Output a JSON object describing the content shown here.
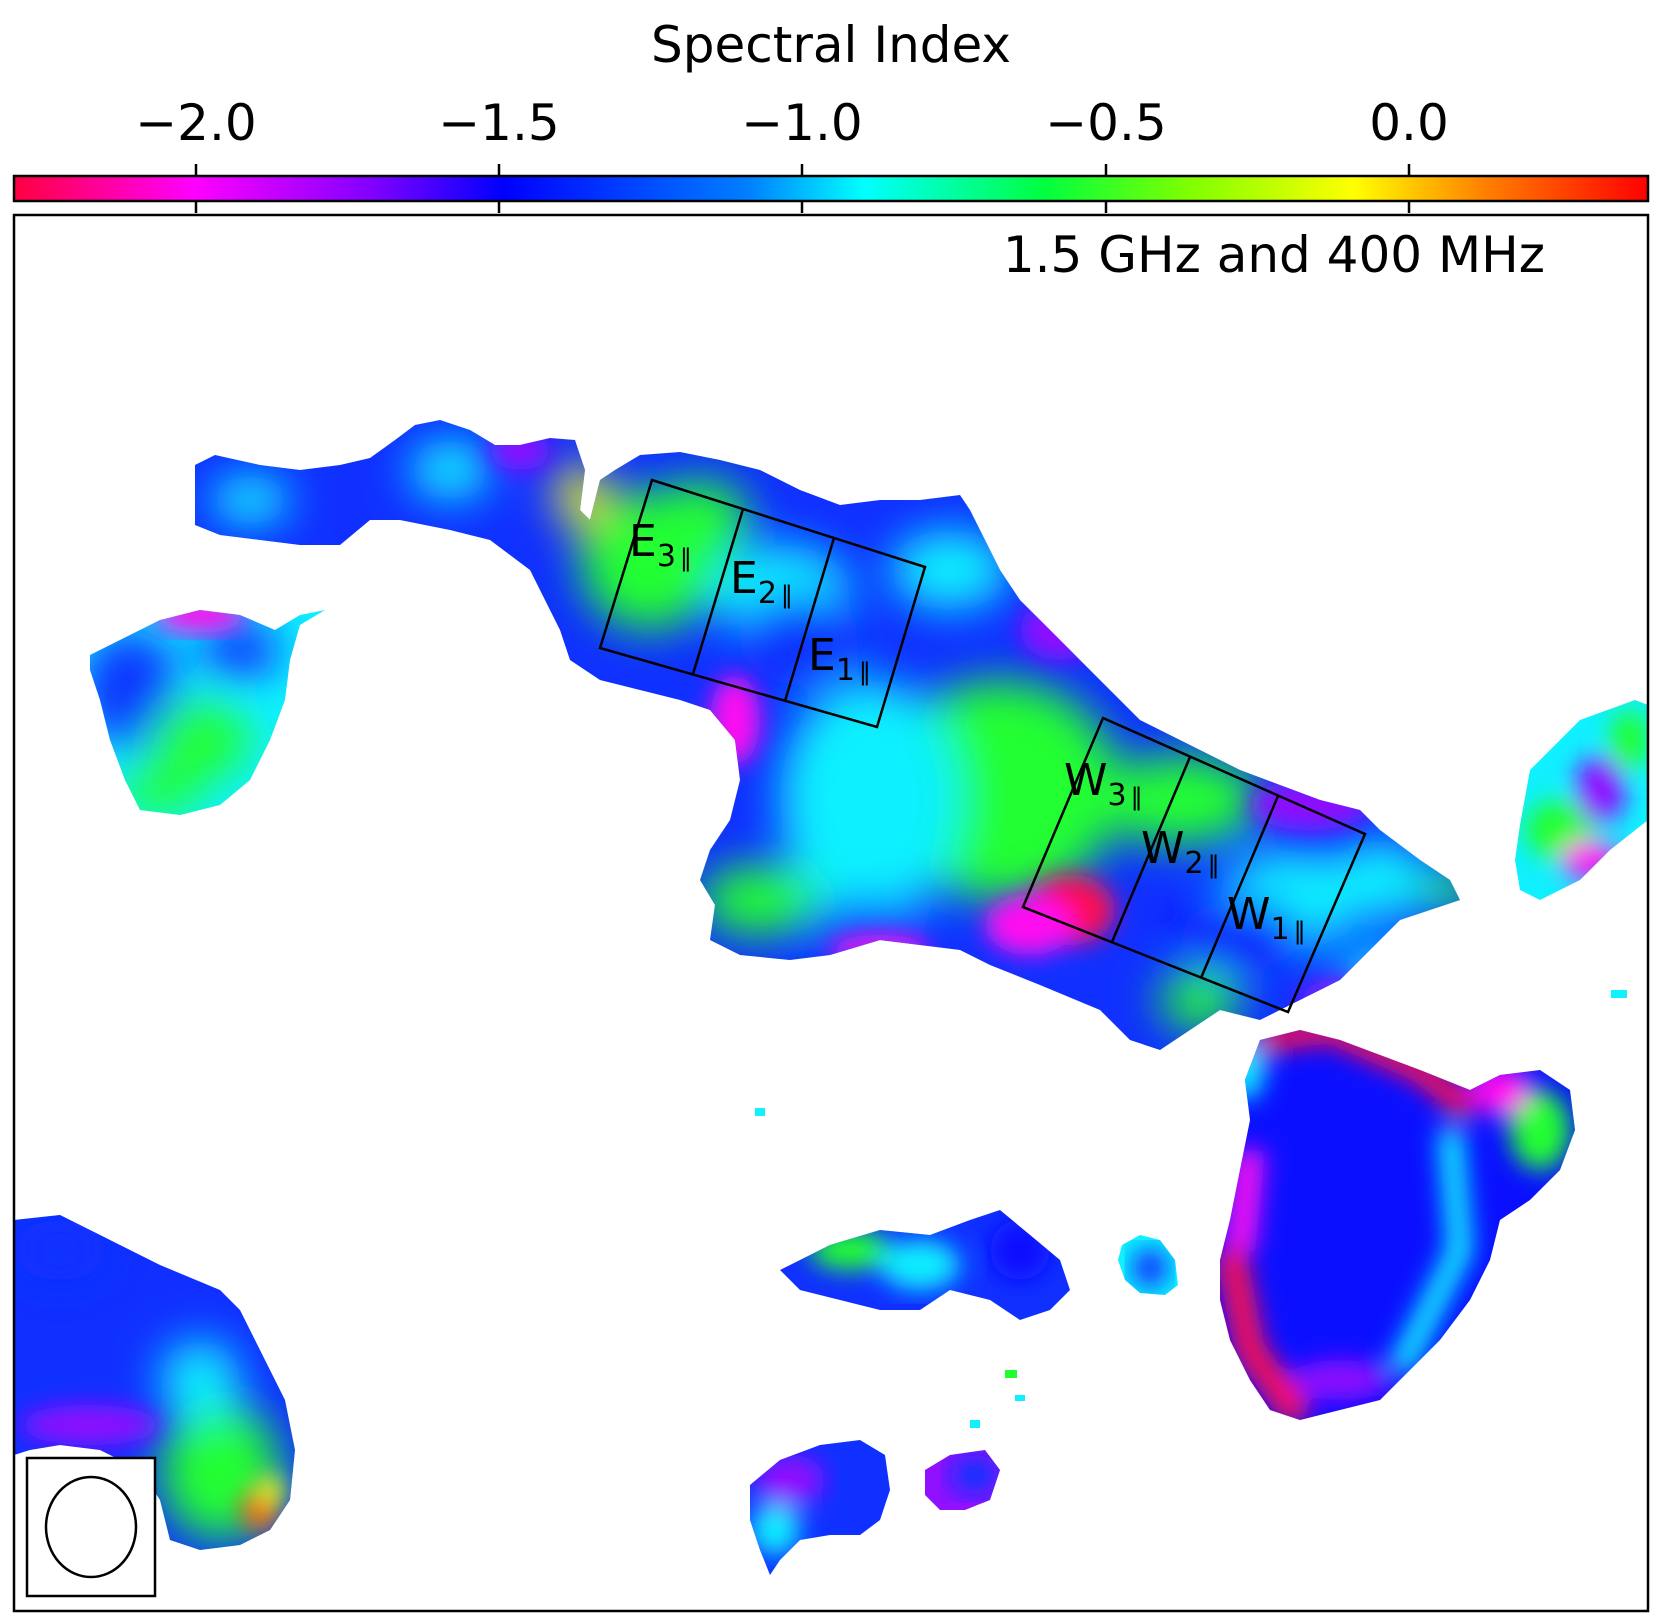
{
  "colorbar": {
    "title": "Spectral Index",
    "tick_labels": [
      "−2.0",
      "−1.5",
      "−1.0",
      "−0.5",
      "0.0"
    ],
    "stops": [
      {
        "offset": 0.0,
        "color": "#ff0040"
      },
      {
        "offset": 0.11,
        "color": "#ff00ff"
      },
      {
        "offset": 0.22,
        "color": "#8000ff"
      },
      {
        "offset": 0.3,
        "color": "#0000ff"
      },
      {
        "offset": 0.45,
        "color": "#0080ff"
      },
      {
        "offset": 0.52,
        "color": "#00ffff"
      },
      {
        "offset": 0.63,
        "color": "#00ff40"
      },
      {
        "offset": 0.72,
        "color": "#80ff00"
      },
      {
        "offset": 0.82,
        "color": "#ffff00"
      },
      {
        "offset": 0.9,
        "color": "#ff8000"
      },
      {
        "offset": 1.0,
        "color": "#ff0000"
      }
    ]
  },
  "panel": {
    "frequency_label": "1.5 GHz and 400 MHz"
  },
  "regions": {
    "east": [
      {
        "letter": "E",
        "sub": "3",
        "mark": "‖"
      },
      {
        "letter": "E",
        "sub": "2",
        "mark": "‖"
      },
      {
        "letter": "E",
        "sub": "1",
        "mark": "‖"
      }
    ],
    "west": [
      {
        "letter": "W",
        "sub": "3",
        "mark": "‖"
      },
      {
        "letter": "W",
        "sub": "2",
        "mark": "‖"
      },
      {
        "letter": "W",
        "sub": "1",
        "mark": "‖"
      }
    ]
  },
  "map_colors": {
    "blue": "#1030ff",
    "deep_blue": "#0a10ff",
    "cyan": "#10f0ff",
    "green": "#20ff30",
    "violet": "#9010ff",
    "magenta": "#ff10f0",
    "red": "#ff1050",
    "yellow": "#f0f020",
    "orange": "#ff6010"
  },
  "beam_icon": "ellipse-beam-icon"
}
